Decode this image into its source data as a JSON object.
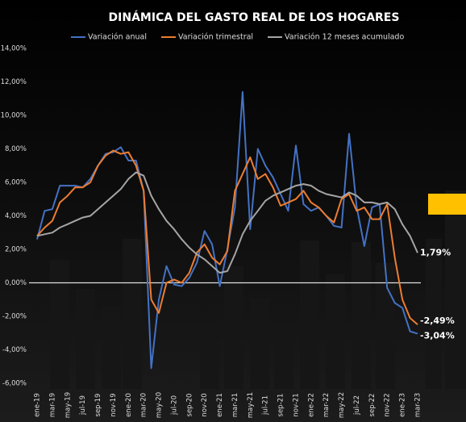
{
  "chart_data": {
    "type": "line",
    "title": "DINÁMICA DEL GASTO REAL DE LOS HOGARES",
    "categories": [
      "ene-19",
      null,
      "mar-19",
      null,
      "may-19",
      null,
      "jul-19",
      null,
      "sep-19",
      null,
      "nov-19",
      null,
      "ene-20",
      null,
      "mar-20",
      null,
      "may-20",
      null,
      "jul-20",
      null,
      "sep-20",
      null,
      "nov-20",
      null,
      "ene-21",
      null,
      "mar-21",
      null,
      "may-21",
      null,
      "jul-21",
      null,
      "sep-21",
      null,
      "nov-21",
      null,
      "ene-22",
      null,
      "mar-22",
      null,
      "may-22",
      null,
      "jul-22",
      null,
      "sep-22",
      null,
      "nov-22",
      null,
      "ene-23",
      null,
      "mar-23"
    ],
    "series": [
      {
        "name": "Variación anual",
        "color": "#4472c4",
        "values": [
          2.6,
          4.3,
          4.4,
          5.8,
          5.8,
          5.8,
          5.7,
          6.2,
          7.0,
          7.7,
          7.8,
          8.1,
          7.3,
          7.3,
          5.5,
          -5.1,
          -1.0,
          1.0,
          -0.1,
          -0.2,
          0.3,
          1.2,
          3.1,
          2.3,
          -0.2,
          2.0,
          4.5,
          11.4,
          3.2,
          8.0,
          7.0,
          6.3,
          5.3,
          4.3,
          8.2,
          4.7,
          4.3,
          4.5,
          4.0,
          3.4,
          3.3,
          8.9,
          4.5,
          2.2,
          4.5,
          4.7,
          -0.3,
          -1.2,
          -1.5,
          -2.9,
          -3.04
        ],
        "value_labels": [
          null,
          null,
          null,
          null,
          null,
          null,
          null,
          null,
          null,
          null,
          null,
          null,
          null,
          null,
          null,
          null,
          null,
          null,
          null,
          null,
          null,
          null,
          null,
          null,
          null,
          null,
          null,
          null,
          null,
          null,
          null,
          null,
          null,
          null,
          null,
          null,
          null,
          null,
          null,
          null,
          null,
          null,
          null,
          null,
          null,
          null,
          null,
          null,
          null,
          null,
          "-3,04%"
        ]
      },
      {
        "name": "Variación trimestral",
        "color": "#ed7d31",
        "values": [
          2.8,
          3.3,
          3.7,
          4.8,
          5.2,
          5.7,
          5.7,
          6.0,
          7.0,
          7.6,
          7.9,
          7.7,
          7.8,
          7.0,
          5.5,
          -1.0,
          -1.8,
          0.0,
          0.2,
          0.0,
          0.6,
          1.8,
          2.3,
          1.5,
          1.1,
          1.9,
          5.5,
          6.5,
          7.5,
          6.2,
          6.5,
          5.7,
          4.6,
          4.8,
          5.0,
          5.5,
          4.8,
          4.5,
          4.0,
          3.6,
          5.0,
          5.3,
          4.3,
          4.5,
          3.8,
          3.8,
          4.7,
          1.5,
          -1.0,
          -2.1,
          -2.49
        ],
        "value_labels": [
          null,
          null,
          null,
          null,
          null,
          null,
          null,
          null,
          null,
          null,
          null,
          null,
          null,
          null,
          null,
          null,
          null,
          null,
          null,
          null,
          null,
          null,
          null,
          null,
          null,
          null,
          null,
          null,
          null,
          null,
          null,
          null,
          null,
          null,
          null,
          null,
          null,
          null,
          null,
          null,
          null,
          null,
          null,
          null,
          null,
          null,
          null,
          null,
          null,
          null,
          "-2,49%"
        ]
      },
      {
        "name": "Variación 12 meses acumulado",
        "color": "#a5a5a5",
        "values": [
          2.8,
          2.9,
          3.0,
          3.3,
          3.5,
          3.7,
          3.9,
          4.0,
          4.4,
          4.8,
          5.2,
          5.6,
          6.2,
          6.6,
          6.4,
          5.2,
          4.4,
          3.7,
          3.2,
          2.6,
          2.1,
          1.7,
          1.4,
          1.0,
          0.6,
          0.7,
          1.7,
          2.9,
          3.7,
          4.3,
          4.9,
          5.2,
          5.4,
          5.6,
          5.8,
          5.9,
          5.8,
          5.5,
          5.3,
          5.2,
          5.1,
          5.4,
          5.2,
          4.8,
          4.8,
          4.7,
          4.8,
          4.4,
          3.5,
          2.8,
          1.79
        ],
        "value_labels": [
          null,
          null,
          null,
          null,
          null,
          null,
          null,
          null,
          null,
          null,
          null,
          null,
          null,
          null,
          null,
          null,
          null,
          null,
          null,
          null,
          null,
          null,
          null,
          null,
          null,
          null,
          null,
          null,
          null,
          null,
          null,
          null,
          null,
          null,
          null,
          null,
          null,
          null,
          null,
          null,
          null,
          null,
          null,
          null,
          null,
          null,
          null,
          null,
          null,
          null,
          "1,79%"
        ]
      }
    ],
    "ylim": [
      -6,
      14
    ],
    "yticks": [
      {
        "value": -6,
        "label": "-6,00%"
      },
      {
        "value": -4,
        "label": "-4,00%"
      },
      {
        "value": -2,
        "label": "-2,00%"
      },
      {
        "value": 0,
        "label": "0,00%"
      },
      {
        "value": 2,
        "label": "2,00%"
      },
      {
        "value": 4,
        "label": "4,00%"
      },
      {
        "value": 6,
        "label": "6,00%"
      },
      {
        "value": 8,
        "label": "8,00%"
      },
      {
        "value": 10,
        "label": "10,00%"
      },
      {
        "value": 12,
        "label": "12,00%"
      },
      {
        "value": 14,
        "label": "14,00%"
      }
    ],
    "grid": false
  }
}
